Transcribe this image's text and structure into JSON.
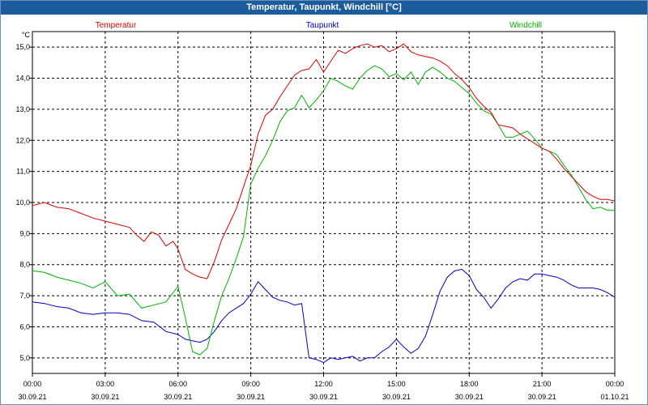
{
  "window": {
    "title": "Temperatur, Taupunkt, Windchill [°C]"
  },
  "colors": {
    "titlebar": "#1c5c9c",
    "temperatur": "#e00000",
    "taupunkt": "#0000c8",
    "windchill": "#00b400",
    "grid": "#000000"
  },
  "chart_data": {
    "type": "line",
    "title": "Temperatur, Taupunkt, Windchill [°C]",
    "ylabel": "°C",
    "ylim": [
      4.5,
      15.5
    ],
    "yticks": [
      "5,0",
      "6,0",
      "7,0",
      "8,0",
      "9,0",
      "10,0",
      "11,0",
      "12,0",
      "13,0",
      "14,0",
      "15,0"
    ],
    "xlim": [
      0,
      24
    ],
    "xticks": [
      {
        "time": "00:00",
        "date": "30.09.21"
      },
      {
        "time": "03:00",
        "date": "30.09.21"
      },
      {
        "time": "06:00",
        "date": "30.09.21"
      },
      {
        "time": "09:00",
        "date": "30.09.21"
      },
      {
        "time": "12:00",
        "date": "30.09.21"
      },
      {
        "time": "15:00",
        "date": "30.09.21"
      },
      {
        "time": "18:00",
        "date": "30.09.21"
      },
      {
        "time": "21:00",
        "date": "30.09.21"
      },
      {
        "time": "00:00",
        "date": "01.10.21"
      }
    ],
    "grid": true,
    "legend_position": "top",
    "series": [
      {
        "name": "Temperatur",
        "color": "#e00000",
        "x": [
          0,
          0.5,
          1,
          1.5,
          2,
          2.5,
          3,
          3.5,
          4,
          4.3,
          4.6,
          4.9,
          5.2,
          5.5,
          5.8,
          6,
          6.3,
          6.6,
          6.9,
          7.2,
          7.5,
          7.8,
          8.1,
          8.4,
          8.7,
          9,
          9.3,
          9.6,
          9.9,
          10.2,
          10.5,
          10.8,
          11.1,
          11.4,
          11.7,
          12,
          12.3,
          12.6,
          12.9,
          13.2,
          13.5,
          13.8,
          14.1,
          14.4,
          14.7,
          15,
          15.3,
          15.6,
          15.9,
          16.2,
          16.5,
          16.8,
          17.1,
          17.4,
          17.7,
          18,
          18.3,
          18.6,
          18.9,
          19.2,
          19.5,
          19.8,
          20.1,
          20.4,
          20.7,
          21,
          21.3,
          21.6,
          21.9,
          22.2,
          22.5,
          22.8,
          23.1,
          23.4,
          23.7,
          24
        ],
        "y": [
          9.9,
          10.0,
          9.85,
          9.8,
          9.65,
          9.5,
          9.4,
          9.3,
          9.2,
          8.95,
          8.75,
          9.05,
          8.95,
          8.6,
          8.75,
          8.5,
          7.85,
          7.7,
          7.6,
          7.55,
          8.1,
          8.8,
          9.3,
          9.8,
          10.5,
          11.2,
          12.2,
          12.8,
          13.0,
          13.4,
          13.75,
          14.1,
          14.25,
          14.3,
          14.6,
          14.2,
          14.55,
          14.9,
          14.8,
          14.95,
          15.05,
          15.1,
          15.0,
          15.05,
          14.85,
          14.95,
          15.1,
          14.85,
          14.75,
          14.7,
          14.65,
          14.55,
          14.4,
          14.15,
          13.95,
          13.7,
          13.35,
          13.1,
          12.9,
          12.5,
          12.45,
          12.4,
          12.2,
          12.05,
          11.9,
          11.75,
          11.65,
          11.4,
          11.1,
          10.85,
          10.6,
          10.35,
          10.2,
          10.1,
          10.1,
          10.05
        ]
      },
      {
        "name": "Taupunkt",
        "color": "#0000c8",
        "x": [
          0,
          0.5,
          1,
          1.5,
          2,
          2.5,
          3,
          3.5,
          4,
          4.5,
          5,
          5.5,
          6,
          6.3,
          6.6,
          6.9,
          7.2,
          7.5,
          7.8,
          8.1,
          8.4,
          8.7,
          9,
          9.3,
          9.6,
          9.9,
          10.2,
          10.5,
          10.8,
          11.1,
          11.4,
          11.7,
          12,
          12.3,
          12.6,
          12.9,
          13.2,
          13.5,
          13.8,
          14.1,
          14.4,
          14.7,
          15,
          15.3,
          15.6,
          15.9,
          16.2,
          16.5,
          16.8,
          17.1,
          17.4,
          17.7,
          18,
          18.3,
          18.6,
          18.9,
          19.2,
          19.5,
          19.8,
          20.1,
          20.4,
          20.7,
          21,
          21.3,
          21.6,
          21.9,
          22.2,
          22.5,
          22.8,
          23.1,
          23.4,
          23.7,
          24
        ],
        "y": [
          6.8,
          6.75,
          6.65,
          6.6,
          6.45,
          6.4,
          6.45,
          6.45,
          6.4,
          6.2,
          6.15,
          5.85,
          5.75,
          5.6,
          5.55,
          5.5,
          5.6,
          5.85,
          6.2,
          6.45,
          6.6,
          6.75,
          7.05,
          7.45,
          7.2,
          6.95,
          6.85,
          6.8,
          6.7,
          6.75,
          5.0,
          4.95,
          4.85,
          5.0,
          4.95,
          5.0,
          5.05,
          4.9,
          5.0,
          5.0,
          5.2,
          5.35,
          5.6,
          5.35,
          5.15,
          5.3,
          5.7,
          6.4,
          7.15,
          7.6,
          7.8,
          7.85,
          7.65,
          7.2,
          6.95,
          6.6,
          6.9,
          7.25,
          7.45,
          7.55,
          7.5,
          7.7,
          7.7,
          7.65,
          7.6,
          7.5,
          7.35,
          7.25,
          7.25,
          7.25,
          7.2,
          7.1,
          6.95
        ]
      },
      {
        "name": "Windchill",
        "color": "#00b400",
        "x": [
          0,
          0.5,
          1,
          1.5,
          2,
          2.5,
          3,
          3.5,
          4,
          4.5,
          5,
          5.5,
          6,
          6.3,
          6.6,
          6.9,
          7.2,
          7.5,
          7.8,
          8.1,
          8.4,
          8.7,
          9,
          9.3,
          9.6,
          9.9,
          10.2,
          10.5,
          10.8,
          11.1,
          11.4,
          11.7,
          12,
          12.3,
          12.6,
          12.9,
          13.2,
          13.5,
          13.8,
          14.1,
          14.4,
          14.7,
          15,
          15.3,
          15.6,
          15.9,
          16.2,
          16.5,
          16.8,
          17.1,
          17.4,
          17.7,
          18,
          18.3,
          18.6,
          18.9,
          19.2,
          19.5,
          19.8,
          20.1,
          20.4,
          20.7,
          21,
          21.3,
          21.6,
          21.9,
          22.2,
          22.5,
          22.8,
          23.1,
          23.4,
          23.7,
          24
        ],
        "y": [
          7.8,
          7.75,
          7.6,
          7.5,
          7.4,
          7.25,
          7.45,
          7.0,
          7.05,
          6.6,
          6.7,
          6.8,
          7.3,
          6.3,
          5.2,
          5.1,
          5.3,
          6.2,
          7.0,
          7.55,
          8.2,
          8.9,
          10.6,
          11.1,
          11.5,
          12.0,
          12.6,
          12.95,
          13.05,
          13.45,
          13.05,
          13.3,
          13.6,
          14.0,
          13.9,
          13.75,
          13.65,
          14.0,
          14.25,
          14.4,
          14.3,
          14.05,
          14.15,
          13.95,
          14.2,
          13.8,
          14.2,
          14.35,
          14.2,
          14.0,
          13.9,
          13.7,
          13.5,
          13.2,
          12.95,
          12.85,
          12.5,
          12.1,
          12.1,
          12.2,
          12.3,
          12.05,
          11.75,
          11.65,
          11.55,
          11.2,
          10.9,
          10.5,
          10.1,
          9.8,
          9.85,
          9.75,
          9.75
        ]
      }
    ]
  }
}
